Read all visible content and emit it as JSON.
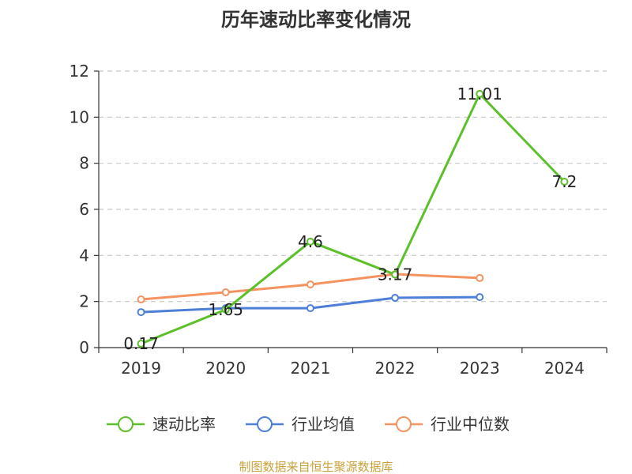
{
  "chart_data": {
    "type": "line",
    "title": "历年速动比率变化情况",
    "xlabel": "",
    "ylabel": "",
    "categories": [
      "2019",
      "2020",
      "2021",
      "2022",
      "2023",
      "2024"
    ],
    "ylim": [
      0,
      12
    ],
    "yticks": [
      0,
      2,
      4,
      6,
      8,
      10,
      12
    ],
    "grid": true,
    "legend_position": "bottom",
    "series": [
      {
        "name": "速动比率",
        "color": "#5cc02a",
        "values": [
          0.17,
          1.65,
          4.6,
          3.17,
          11.01,
          7.2
        ],
        "show_labels": true
      },
      {
        "name": "行业均值",
        "color": "#4e7fd6",
        "values": [
          1.54,
          1.71,
          1.71,
          2.16,
          2.19,
          null
        ],
        "show_labels": false
      },
      {
        "name": "行业中位数",
        "color": "#f4935f",
        "values": [
          2.09,
          2.4,
          2.74,
          3.19,
          3.02,
          null
        ],
        "show_labels": false
      }
    ]
  },
  "footer": {
    "text": "制图数据来自恒生聚源数据库",
    "color": "#c9a13b"
  }
}
